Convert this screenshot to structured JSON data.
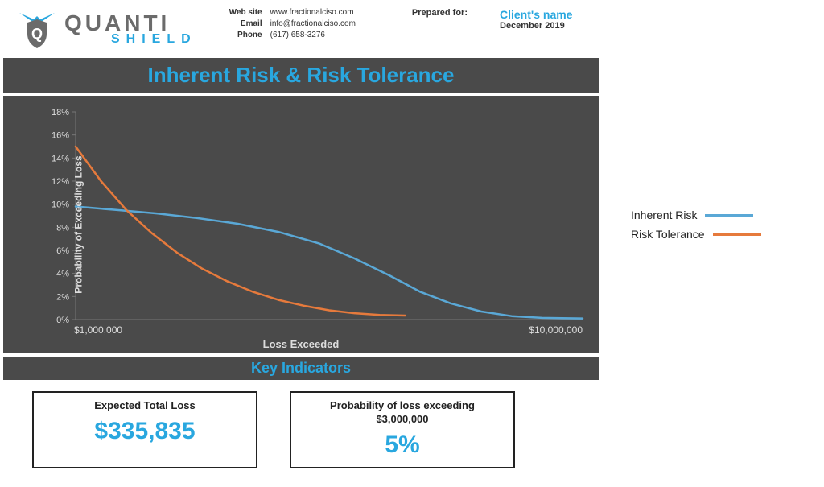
{
  "brand": {
    "main": "QUANTI",
    "sub": "SHIELD",
    "icon_color": "#29a7df",
    "shield_color": "#6b6b6b"
  },
  "contact": {
    "website_label": "Web site",
    "website": "www.fractionalciso.com",
    "email_label": "Email",
    "email": "info@fractionalciso.com",
    "phone_label": "Phone",
    "phone": "(617) 658-3276"
  },
  "prepared": {
    "label": "Prepared for:",
    "client": "Client's name",
    "date": "December 2019"
  },
  "title": "Inherent Risk & Risk Tolerance",
  "chart": {
    "type": "line",
    "background_color": "#4a4a4a",
    "grid_color": "#777777",
    "text_color": "#dddddd",
    "y_axis_label": "Probability of Exceeding Loss",
    "x_axis_label": "Loss Exceeded",
    "ylim": [
      0,
      18
    ],
    "ytick_step": 2,
    "ytick_suffix": "%",
    "xtick_labels": [
      "$1,000,000",
      "$10,000,000"
    ],
    "xtick_positions": [
      0,
      100
    ],
    "series": [
      {
        "name": "Inherent Risk",
        "color": "#5aa8d6",
        "width": 2.5,
        "points": [
          [
            0,
            9.8
          ],
          [
            8,
            9.5
          ],
          [
            16,
            9.2
          ],
          [
            24,
            8.8
          ],
          [
            32,
            8.3
          ],
          [
            40,
            7.6
          ],
          [
            48,
            6.6
          ],
          [
            55,
            5.3
          ],
          [
            62,
            3.8
          ],
          [
            68,
            2.4
          ],
          [
            74,
            1.4
          ],
          [
            80,
            0.7
          ],
          [
            86,
            0.3
          ],
          [
            92,
            0.15
          ],
          [
            100,
            0.1
          ]
        ]
      },
      {
        "name": "Risk Tolerance",
        "color": "#e67a3c",
        "width": 2.5,
        "points": [
          [
            0,
            15.0
          ],
          [
            5,
            12.0
          ],
          [
            10,
            9.5
          ],
          [
            15,
            7.5
          ],
          [
            20,
            5.8
          ],
          [
            25,
            4.4
          ],
          [
            30,
            3.3
          ],
          [
            35,
            2.4
          ],
          [
            40,
            1.7
          ],
          [
            45,
            1.2
          ],
          [
            50,
            0.8
          ],
          [
            55,
            0.55
          ],
          [
            60,
            0.4
          ],
          [
            65,
            0.35
          ]
        ]
      }
    ]
  },
  "legend": {
    "items": [
      {
        "label": "Inherent Risk",
        "color": "#5aa8d6"
      },
      {
        "label": "Risk Tolerance",
        "color": "#e67a3c"
      }
    ]
  },
  "key_indicators_title": "Key Indicators",
  "indicators": [
    {
      "label": "Expected Total Loss",
      "sub": "",
      "value": "$335,835"
    },
    {
      "label": "Probability of loss exceeding",
      "sub": "$3,000,000",
      "value": "5%"
    }
  ]
}
